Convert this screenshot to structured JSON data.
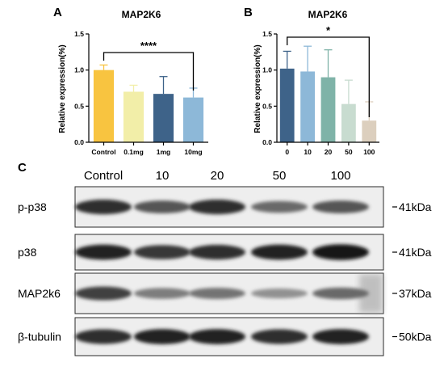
{
  "chart_data": [
    {
      "panel": "A",
      "type": "bar",
      "title": "MAP2K6",
      "ylabel": "Relative expression(%)",
      "xlabel": "",
      "categories": [
        "Control",
        "0.1mg",
        "1mg",
        "10mg"
      ],
      "values": [
        1.0,
        0.7,
        0.67,
        0.62
      ],
      "errors": [
        0.07,
        0.09,
        0.24,
        0.13
      ],
      "colors": [
        "#f8c440",
        "#f2eea8",
        "#3e6389",
        "#8db8d8"
      ],
      "ylim": [
        0.0,
        1.5
      ],
      "yticks": [
        "0.0",
        "0.5",
        "1.0",
        "1.5"
      ],
      "significance": {
        "from": "Control",
        "to": "10mg",
        "label": "****"
      }
    },
    {
      "panel": "B",
      "type": "bar",
      "title": "MAP2K6",
      "ylabel": "Relative expression(%)",
      "xlabel": "",
      "categories": [
        "0",
        "10",
        "20",
        "50",
        "100"
      ],
      "values": [
        1.02,
        0.98,
        0.9,
        0.53,
        0.3
      ],
      "errors": [
        0.24,
        0.35,
        0.38,
        0.33,
        0.26
      ],
      "colors": [
        "#3e6389",
        "#8db8d8",
        "#7fb3a8",
        "#c8dcd0",
        "#dccfbe"
      ],
      "ylim": [
        0.0,
        1.5
      ],
      "yticks": [
        "0.0",
        "0.5",
        "1.0",
        "1.5"
      ],
      "significance": {
        "from": "0",
        "to": "100",
        "label": "*"
      }
    }
  ],
  "blot": {
    "panel": "C",
    "lanes": [
      "Control",
      "10",
      "20",
      "50",
      "100"
    ],
    "rows": [
      {
        "label": "p-p38",
        "size": "41kDa",
        "intensity": [
          0.85,
          0.65,
          0.85,
          0.55,
          0.65
        ]
      },
      {
        "label": "p38",
        "size": "41kDa",
        "intensity": [
          0.9,
          0.8,
          0.85,
          0.9,
          0.95
        ]
      },
      {
        "label": "MAP2k6",
        "size": "37kDa",
        "intensity": [
          0.75,
          0.45,
          0.5,
          0.35,
          0.55
        ]
      },
      {
        "label": "β-tubulin",
        "size": "50kDa",
        "intensity": [
          0.85,
          0.9,
          0.9,
          0.85,
          0.9
        ]
      }
    ]
  }
}
